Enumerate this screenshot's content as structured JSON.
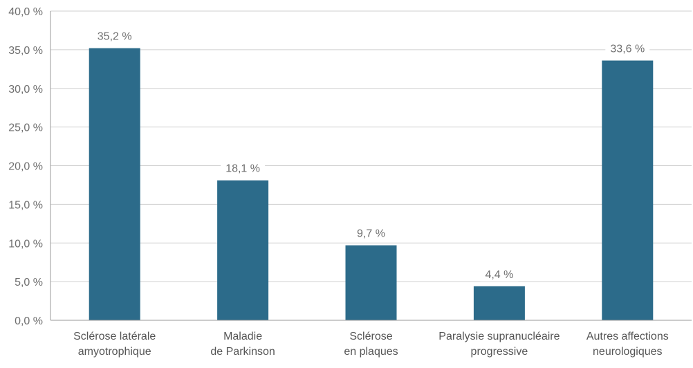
{
  "chart_data": {
    "type": "bar",
    "categories": [
      [
        "Sclérose latérale",
        "amyotrophique"
      ],
      [
        "Maladie",
        "de Parkinson"
      ],
      [
        "Sclérose",
        "en plaques"
      ],
      [
        "Paralysie supranucléaire",
        "progressive"
      ],
      [
        "Autres affections",
        "neurologiques"
      ]
    ],
    "values": [
      35.2,
      18.1,
      9.7,
      4.4,
      33.6
    ],
    "data_labels": [
      "35,2 %",
      "18,1 %",
      "9,7 %",
      "4,4 %",
      "33,6 %"
    ],
    "y_ticks": [
      0,
      5,
      10,
      15,
      20,
      25,
      30,
      35,
      40
    ],
    "y_tick_labels": [
      "0,0 %",
      "5,0 %",
      "10,0 %",
      "15,0 %",
      "20,0 %",
      "25,0 %",
      "30,0 %",
      "35,0 %",
      "40,0 %"
    ],
    "ylim": [
      0,
      40
    ],
    "grid": true,
    "title": "",
    "xlabel": "",
    "ylabel": "",
    "bar_color": "#2c6b8a"
  }
}
